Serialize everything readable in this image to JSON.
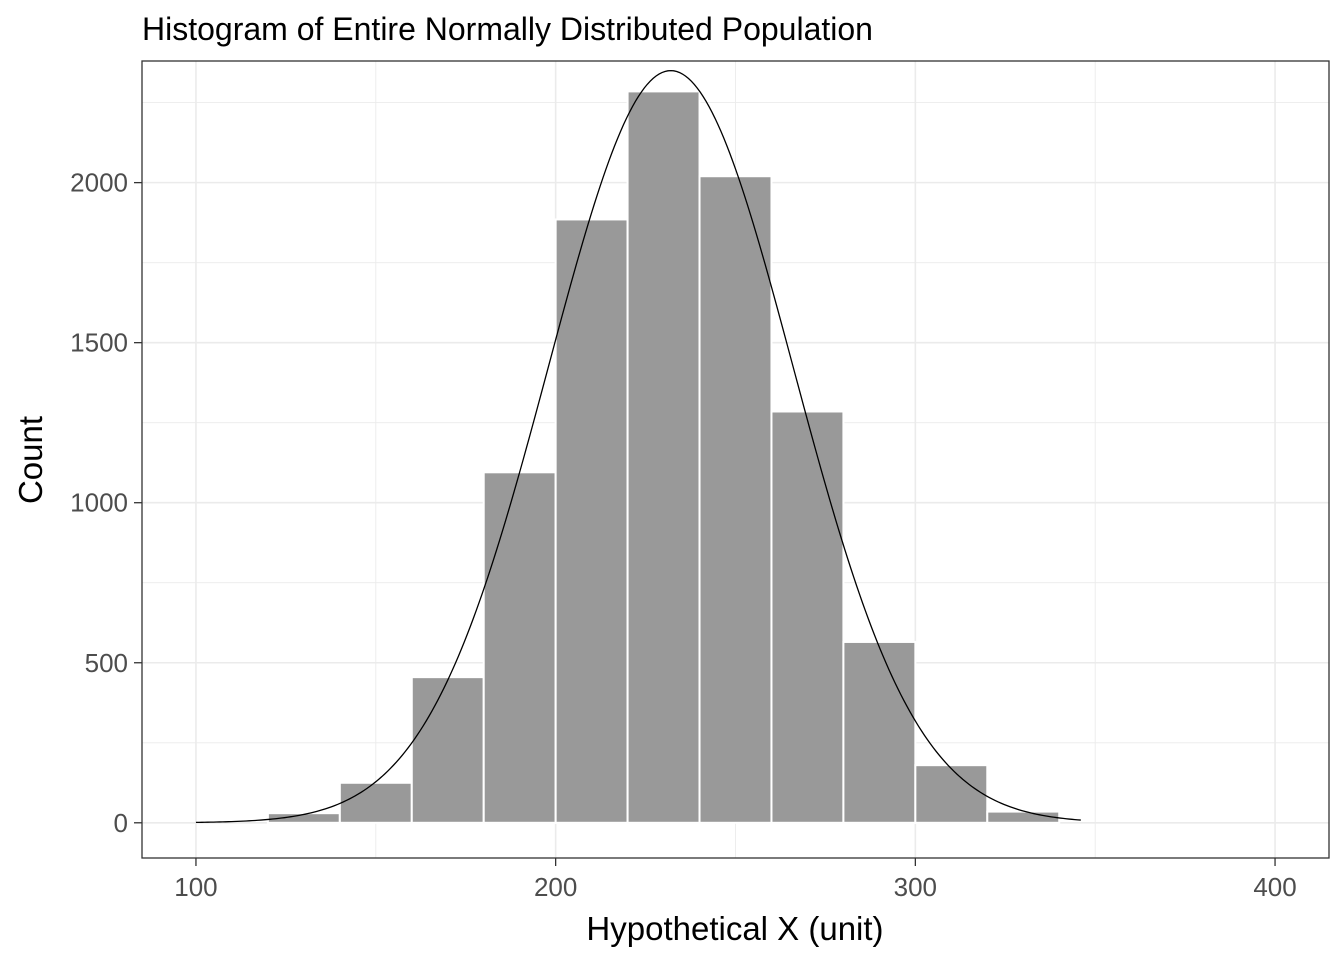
{
  "chart_data": {
    "type": "bar",
    "title": "Histogram of Entire Normally Distributed Population",
    "xlabel": "Hypothetical X (unit)",
    "ylabel": "Count",
    "xlim": [
      85,
      415
    ],
    "ylim": [
      -110,
      2380
    ],
    "x_ticks": [
      100,
      200,
      300,
      400
    ],
    "x_tick_labels": [
      "100",
      "200",
      "300",
      "400"
    ],
    "y_ticks": [
      0,
      500,
      1000,
      1500,
      2000
    ],
    "y_tick_labels": [
      "0",
      "500",
      "1000",
      "1500",
      "2000"
    ],
    "x_minor_ticks": [
      150,
      250,
      350
    ],
    "y_minor_ticks": [
      250,
      750,
      1250,
      1750,
      2250
    ],
    "grid": true,
    "bin_width": 20,
    "bins": [
      {
        "x0": 120,
        "x1": 140,
        "count": 30
      },
      {
        "x0": 140,
        "x1": 160,
        "count": 125
      },
      {
        "x0": 160,
        "x1": 180,
        "count": 455
      },
      {
        "x0": 180,
        "x1": 200,
        "count": 1095
      },
      {
        "x0": 200,
        "x1": 220,
        "count": 1885
      },
      {
        "x0": 220,
        "x1": 240,
        "count": 2285
      },
      {
        "x0": 240,
        "x1": 260,
        "count": 2020
      },
      {
        "x0": 260,
        "x1": 280,
        "count": 1285
      },
      {
        "x0": 280,
        "x1": 300,
        "count": 565
      },
      {
        "x0": 300,
        "x1": 320,
        "count": 180
      },
      {
        "x0": 320,
        "x1": 340,
        "count": 35
      }
    ],
    "density_curve": {
      "mean": 232,
      "sd": 34,
      "peak_count": 2350,
      "x_range": [
        100,
        346
      ]
    },
    "colors": {
      "bar_fill": "#999999",
      "bar_stroke": "#ffffff",
      "curve": "#000000",
      "grid": "#ebebeb",
      "panel_border": "#333333"
    }
  }
}
